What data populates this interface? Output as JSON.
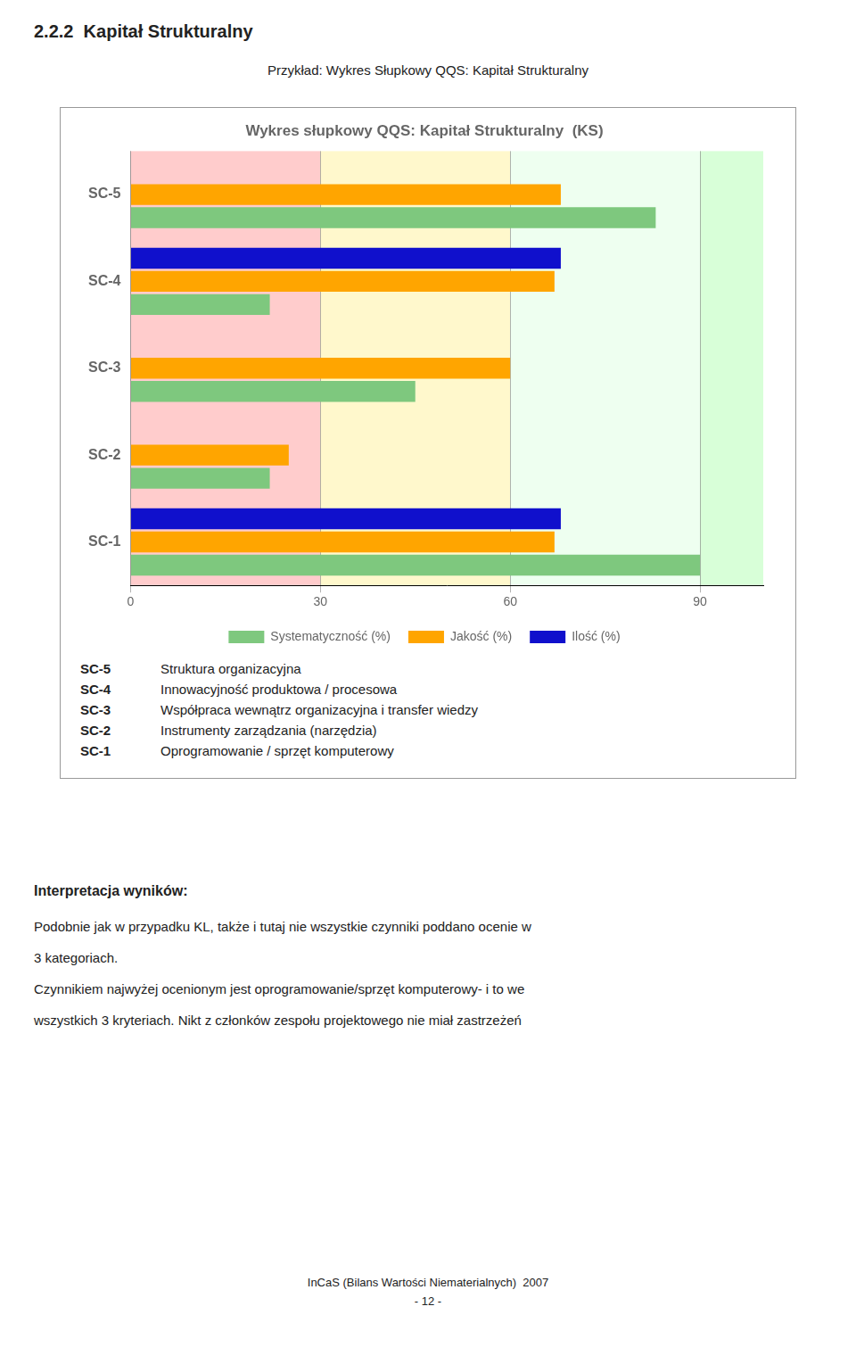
{
  "heading": "2.2.2  Kapitał Strukturalny",
  "subtitle": "Przykład: Wykres Słupkowy QQS: Kapitał Strukturalny",
  "chart_data": {
    "type": "bar",
    "orientation": "horizontal",
    "title": "Wykres słupkowy QQS: Kapitał Strukturalny  (KS)",
    "categories": [
      "SC-5",
      "SC-4",
      "SC-3",
      "SC-2",
      "SC-1"
    ],
    "series": [
      {
        "name": "Systematyczność (%)",
        "color": "#7ec87e",
        "values": [
          83,
          22,
          45,
          22,
          90
        ]
      },
      {
        "name": "Jakość (%)",
        "color": "#ffa500",
        "values": [
          68,
          67,
          60,
          25,
          67
        ]
      },
      {
        "name": "Ilość (%)",
        "color": "#1010cc",
        "values": [
          0,
          68,
          0,
          0,
          68
        ]
      }
    ],
    "xlim": [
      0,
      100
    ],
    "xticks": [
      0,
      30,
      60,
      90
    ],
    "grid": true,
    "legend": "bottom",
    "bands": [
      {
        "xmin": 0,
        "xmax": 30,
        "color": "#ffcccc"
      },
      {
        "xmin": 30,
        "xmax": 60,
        "color": "#fff8cc"
      },
      {
        "xmin": 60,
        "xmax": 90,
        "color": "#eefff0"
      },
      {
        "xmin": 90,
        "xmax": 100,
        "color": "#d8ffd8"
      }
    ]
  },
  "descriptions": [
    {
      "label": "SC-5",
      "text": "Struktura organizacyjna"
    },
    {
      "label": "SC-4",
      "text": "Innowacyjność produktowa / procesowa"
    },
    {
      "label": "SC-3",
      "text": "Współpraca wewnątrz organizacyjna i transfer wiedzy"
    },
    {
      "label": "SC-2",
      "text": "Instrumenty zarządzania (narzędzia)"
    },
    {
      "label": "SC-1",
      "text": "Oprogramowanie / sprzęt komputerowy"
    }
  ],
  "interpretation_title": "Interpretacja wyników:",
  "interpretation_lines": [
    "Podobnie jak w przypadku KL, także i tutaj nie wszystkie czynniki poddano ocenie w",
    "3 kategoriach.",
    "Czynnikiem najwyżej ocenionym jest oprogramowanie/sprzęt komputerowy- i to we",
    "wszystkich 3 kryteriach. Nikt z członków zespołu projektowego nie miał zastrzeżeń"
  ],
  "footer": [
    "InCaS (Bilans Wartości Niematerialnych)  2007",
    "- 12 -"
  ]
}
